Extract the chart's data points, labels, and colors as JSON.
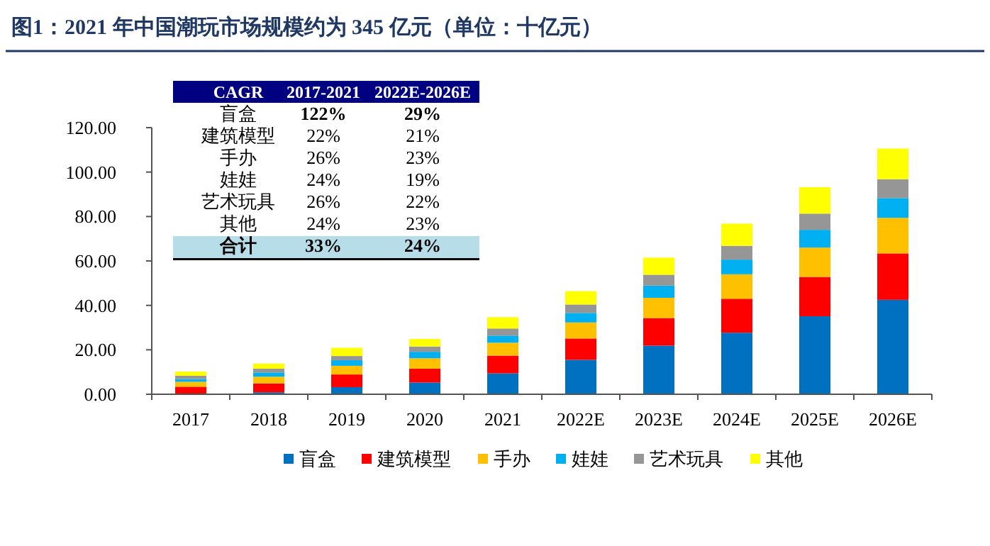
{
  "chart_data": {
    "type": "bar",
    "stacked": true,
    "title": "图1：2021 年中国潮玩市场规模约为 345 亿元（单位：十亿元）",
    "categories": [
      "2017",
      "2018",
      "2019",
      "2020",
      "2021",
      "2022E",
      "2023E",
      "2024E",
      "2025E",
      "2026E"
    ],
    "series": [
      {
        "name": "盲盒",
        "color": "#0070c0",
        "values": [
          null,
          0.9,
          3.2,
          5.3,
          9.4,
          15.5,
          21.9,
          27.7,
          35.1,
          42.5
        ]
      },
      {
        "name": "建筑模型",
        "color": "#ff0000",
        "values": [
          3.4,
          4.0,
          5.7,
          6.2,
          8.0,
          9.6,
          12.4,
          15.3,
          17.7,
          20.9
        ]
      },
      {
        "name": "手办",
        "color": "#ffc000",
        "values": [
          2.2,
          3.0,
          3.9,
          4.7,
          5.8,
          7.2,
          9.1,
          11.0,
          13.2,
          16.0
        ]
      },
      {
        "name": "娃娃",
        "color": "#00b0f0",
        "values": [
          1.2,
          1.9,
          2.5,
          2.9,
          3.2,
          4.3,
          5.5,
          6.6,
          8.0,
          8.9
        ]
      },
      {
        "name": "艺术玩具",
        "color": "#969696",
        "values": [
          1.5,
          1.7,
          1.9,
          2.4,
          3.2,
          3.8,
          4.9,
          6.2,
          7.3,
          8.5
        ]
      },
      {
        "name": "其他",
        "color": "#ffff00",
        "values": [
          1.9,
          2.3,
          3.7,
          3.4,
          5.1,
          6.0,
          7.7,
          10.0,
          11.9,
          13.8
        ]
      }
    ],
    "ylim": [
      0,
      120
    ],
    "yticks": [
      {
        "value": 0,
        "label": "0.00"
      },
      {
        "value": 20,
        "label": "20.00"
      },
      {
        "value": 40,
        "label": "40.00"
      },
      {
        "value": 60,
        "label": "60.00"
      },
      {
        "value": 80,
        "label": "80.00"
      },
      {
        "value": 100,
        "label": "100.00"
      },
      {
        "value": 120,
        "label": "120.00"
      }
    ],
    "legend": "bottom",
    "annotations": [
      "CAGR",
      "2017-2021",
      "2022E-2026E",
      "盲盒",
      "122%",
      "29%",
      "建筑模型",
      "22%",
      "21%",
      "手办",
      "26%",
      "23%",
      "娃娃",
      "24%",
      "19%",
      "艺术玩具",
      "26%",
      "22%",
      "其他",
      "24%",
      "23%",
      "合计",
      "33%",
      "24%"
    ]
  }
}
